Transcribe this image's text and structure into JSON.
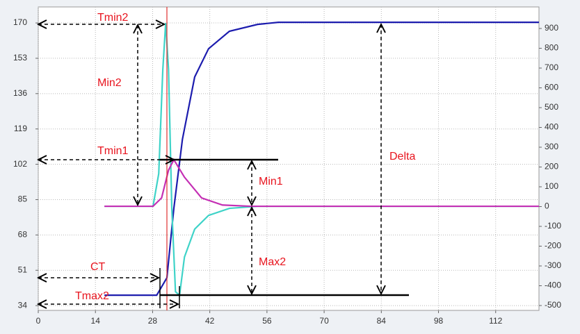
{
  "chart_data": {
    "type": "line",
    "xlim": [
      0,
      122.6
    ],
    "xticks": [
      0,
      14,
      28,
      42,
      56,
      70,
      84,
      98,
      112
    ],
    "ylim": [
      31.7,
      177.7
    ],
    "yticks": [
      34,
      51,
      68,
      85,
      102,
      119,
      136,
      153,
      170
    ],
    "y2lim": [
      -524.6,
      1008.8
    ],
    "y2ticks": [
      -500,
      -400,
      -300,
      -200,
      -100,
      0,
      100,
      200,
      300,
      400,
      500,
      600,
      700,
      800,
      900
    ],
    "grid": true,
    "series": [
      {
        "color": "#1c1cae",
        "x": [
          16.2,
          29,
          31.5,
          33.2,
          35.3,
          38.3,
          41.7,
          46.8,
          53.7,
          58.8,
          122.6
        ],
        "values": [
          39,
          39,
          47.4,
          80.8,
          114,
          144,
          157.6,
          166,
          169.3,
          170.3,
          170.3
        ]
      },
      {
        "color": "#3fd3c8",
        "x": [
          16.2,
          28.1,
          29.5,
          30.5,
          31.2,
          31.9,
          32.7,
          33.6,
          34.6,
          35.8,
          38.3,
          41.7,
          46.8,
          53.7,
          122.6
        ],
        "values": [
          81.8,
          81.8,
          97.5,
          147.6,
          170,
          147.6,
          80.8,
          40.7,
          39,
          57.4,
          70.8,
          77.4,
          80.8,
          81.8,
          81.8
        ]
      },
      {
        "color": "#c42fb4",
        "x": [
          16.2,
          28.1,
          30.2,
          31.9,
          33.2,
          35.8,
          40,
          45.1,
          52,
          122.6
        ],
        "values": [
          81.8,
          81.8,
          85.8,
          99.2,
          104.2,
          95.8,
          85.8,
          82.4,
          81.8,
          81.8
        ]
      }
    ],
    "annotations": [
      "Tmin2",
      "Min2",
      "Tmin1",
      "Min1",
      "Max2",
      "Delta",
      "CT",
      "Tmax2"
    ]
  }
}
